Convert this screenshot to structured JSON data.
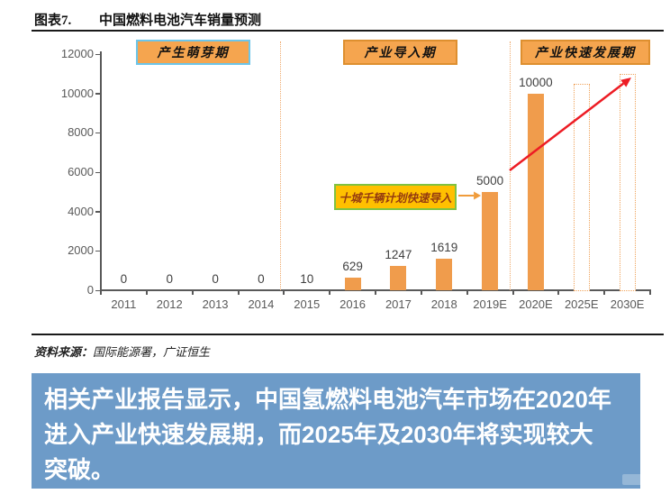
{
  "figure": {
    "label": "图表7.",
    "title": "中国燃料电池汽车销量预测"
  },
  "source": {
    "prefix": "资料来源：",
    "text": "国际能源署，广证恒生"
  },
  "banner": {
    "bg": "#6D9BC8",
    "lines": [
      "相关产业报告显示，中国氢燃料电池汽车市场在2020年",
      "进入产业快速发展期，而2025年及2030年将实现较大",
      "突破。"
    ]
  },
  "chart_data": {
    "type": "bar",
    "title": "中国燃料电池汽车销量预测",
    "categories": [
      "2011",
      "2012",
      "2013",
      "2014",
      "2015",
      "2016",
      "2017",
      "2018",
      "2019E",
      "2020E",
      "2025E",
      "2030E"
    ],
    "values": [
      0,
      0,
      0,
      0,
      10,
      629,
      1247,
      1619,
      5000,
      10000,
      10500,
      11000
    ],
    "value_labels": [
      "0",
      "0",
      "0",
      "0",
      "10",
      "629",
      "1247",
      "1619",
      "5000",
      "10000",
      "",
      ""
    ],
    "bar_styles": [
      "none",
      "none",
      "none",
      "none",
      "none",
      "solid",
      "solid",
      "solid",
      "solid",
      "solid",
      "outline",
      "outline"
    ],
    "ylim": [
      0,
      12000
    ],
    "ytick_step": 2000,
    "yticks": [
      0,
      2000,
      4000,
      6000,
      8000,
      10000,
      12000
    ],
    "xlabel": "",
    "ylabel": "",
    "grid": false,
    "legend": null,
    "bar_color": "#F09C4C",
    "outline_bar_color": "#EFA35B",
    "axis_color": "#595959",
    "separator_color": "#EFA96B",
    "separators_after": [
      "2014",
      "2019E"
    ],
    "phases": [
      {
        "label": "产生萌芽期",
        "fill": "#F5A54F",
        "border": "#6CC5E9",
        "span": "2011-2014"
      },
      {
        "label": "产业导入期",
        "fill": "#F5A54F",
        "border": "#DE8F2F",
        "span": "2015-2018"
      },
      {
        "label": "产业快速发展期",
        "fill": "#F5A54F",
        "border": "#DE8F2F",
        "span": "2019E-2030E"
      }
    ],
    "callout": {
      "text": "十城千辆计划快速导入",
      "bg": "#FFC000",
      "border": "#7FC241",
      "text_color": "#953B10",
      "points_to": "2019E",
      "arrow_color": "#F09C3C"
    },
    "trend_arrow": {
      "color": "#ED1C24",
      "from_category": "2020E",
      "to_category": "2030E"
    }
  }
}
